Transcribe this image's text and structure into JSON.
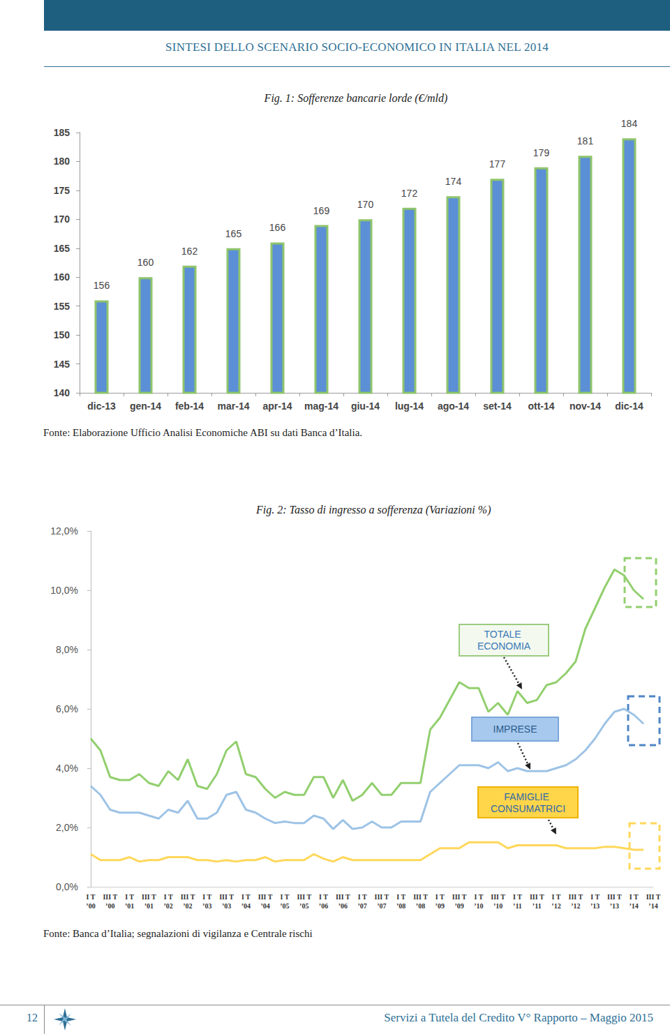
{
  "header": {
    "title": "SINTESI DELLO SCENARIO SOCIO-ECONOMICO IN ITALIA NEL 2014"
  },
  "chart_data": [
    {
      "type": "bar",
      "title": "Fig. 1: Sofferenze bancarie lorde (€/mld)",
      "categories": [
        "dic-13",
        "gen-14",
        "feb-14",
        "mar-14",
        "apr-14",
        "mag-14",
        "giu-14",
        "lug-14",
        "ago-14",
        "set-14",
        "ott-14",
        "nov-14",
        "dic-14"
      ],
      "values": [
        156,
        160,
        162,
        165,
        166,
        169,
        170,
        172,
        174,
        177,
        179,
        181,
        184
      ],
      "color": "#5b8fd6",
      "ylim": [
        140,
        185
      ],
      "yticks": [
        140,
        145,
        150,
        155,
        160,
        165,
        170,
        175,
        180,
        185
      ],
      "grid": false,
      "data_labels": true,
      "source": "Fonte: Elaborazione Ufficio Analisi Economiche ABI su dati Banca d’Italia."
    },
    {
      "type": "line",
      "title": "Fig. 2: Tasso di ingresso a sofferenza (Variazioni %)",
      "categories": [
        "I T\n’00",
        null,
        "III T\n’00",
        null,
        "I T\n’01",
        null,
        "III T\n’01",
        null,
        "I T\n’02",
        null,
        "III T\n’02",
        null,
        "I T\n’03",
        null,
        "III T\n’03",
        null,
        "I T\n’04",
        null,
        "III T\n’04",
        null,
        "I T\n’05",
        null,
        "III T\n’05",
        null,
        "I T\n’06",
        null,
        "III T\n’06",
        null,
        "I T\n’07",
        null,
        "III T\n’07",
        null,
        "I T\n’08",
        null,
        "III T\n’08",
        null,
        "I T\n’09",
        null,
        "III T\n’09",
        null,
        "I T\n’10",
        null,
        "III T\n’10",
        null,
        "I T\n’11",
        null,
        "III T\n’11",
        null,
        "I T\n’12",
        null,
        "III T\n’12",
        null,
        "I T\n’13",
        null,
        "III T\n’13",
        null,
        "I T\n’14",
        null,
        "III T\n’14"
      ],
      "series": [
        {
          "name": "TOTALE ECONOMIA",
          "color": "#92cf6e",
          "values": [
            5.0,
            4.6,
            3.7,
            3.6,
            3.6,
            3.8,
            3.5,
            3.4,
            3.9,
            3.6,
            4.3,
            3.4,
            3.3,
            3.8,
            4.6,
            4.9,
            3.8,
            3.7,
            3.3,
            3.0,
            3.2,
            3.1,
            3.1,
            3.7,
            3.7,
            3.0,
            3.6,
            2.9,
            3.1,
            3.5,
            3.1,
            3.1,
            3.5,
            3.5,
            3.5,
            5.3,
            5.7,
            6.3,
            6.9,
            6.7,
            6.7,
            5.9,
            6.2,
            5.8,
            6.6,
            6.2,
            6.3,
            6.8,
            6.9,
            7.2,
            7.6,
            8.7,
            9.4,
            10.1,
            10.7,
            10.5,
            10.0,
            9.7,
            null
          ]
        },
        {
          "name": "IMPRESE",
          "color": "#9dc3e6",
          "values": [
            3.4,
            3.1,
            2.6,
            2.5,
            2.5,
            2.5,
            2.4,
            2.3,
            2.6,
            2.5,
            2.9,
            2.3,
            2.3,
            2.5,
            3.1,
            3.2,
            2.6,
            2.5,
            2.3,
            2.15,
            2.2,
            2.15,
            2.15,
            2.4,
            2.3,
            1.95,
            2.25,
            1.95,
            2.0,
            2.2,
            2.0,
            2.0,
            2.2,
            2.2,
            2.2,
            3.2,
            3.5,
            3.8,
            4.1,
            4.1,
            4.1,
            4.0,
            4.2,
            3.9,
            4.0,
            3.9,
            3.9,
            3.9,
            4.0,
            4.1,
            4.3,
            4.6,
            5.0,
            5.5,
            5.9,
            6.0,
            5.8,
            5.5,
            null
          ]
        },
        {
          "name": "FAMIGLIE CONSUMATRICI",
          "color": "#ffd75a",
          "values": [
            1.1,
            0.9,
            0.9,
            0.9,
            1.0,
            0.85,
            0.9,
            0.9,
            1.0,
            1.0,
            1.0,
            0.9,
            0.9,
            0.85,
            0.9,
            0.85,
            0.9,
            0.9,
            1.0,
            0.85,
            0.9,
            0.9,
            0.9,
            1.1,
            0.95,
            0.85,
            1.0,
            0.9,
            0.9,
            0.9,
            0.9,
            0.9,
            0.9,
            0.9,
            0.9,
            1.1,
            1.3,
            1.3,
            1.3,
            1.5,
            1.5,
            1.5,
            1.5,
            1.3,
            1.4,
            1.4,
            1.4,
            1.4,
            1.4,
            1.3,
            1.3,
            1.3,
            1.3,
            1.35,
            1.35,
            1.3,
            1.25,
            1.25,
            null
          ]
        }
      ],
      "ylim": [
        0,
        12
      ],
      "yticks": [
        {
          "value": 0,
          "label": "0,0%"
        },
        {
          "value": 2,
          "label": "2,0%"
        },
        {
          "value": 4,
          "label": "4,0%"
        },
        {
          "value": 6,
          "label": "6,0%"
        },
        {
          "value": 8,
          "label": "8,0%"
        },
        {
          "value": 10,
          "label": "10,0%"
        },
        {
          "value": 12,
          "label": "12,0%"
        }
      ],
      "grid": false,
      "source": "Fonte: Banca d’Italia; segnalazioni di vigilanza e Centrale rischi"
    }
  ],
  "footer": {
    "page": "12",
    "text": "Servizi a Tutela del Credito V° Rapporto – Maggio 2015"
  }
}
